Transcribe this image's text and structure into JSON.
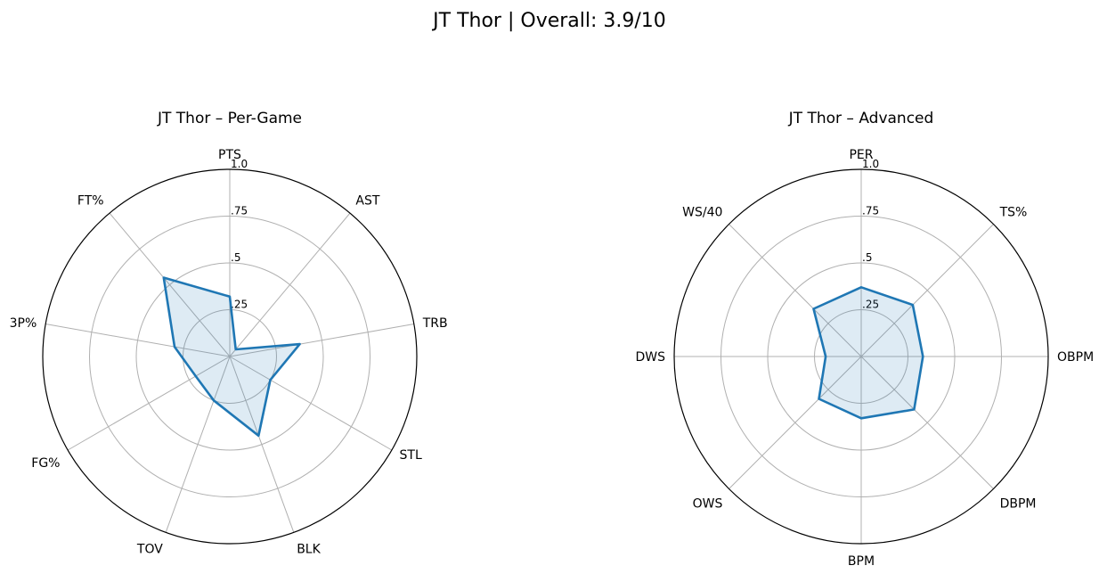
{
  "figure": {
    "title": "JT Thor | Overall: 3.9/10"
  },
  "colors": {
    "series": "#1f77b4",
    "grid": "#b0b0b0",
    "frame": "#000000"
  },
  "chart_data": [
    {
      "type": "radar",
      "title": "JT Thor – Per-Game",
      "categories": [
        "PTS",
        "AST",
        "TRB",
        "STL",
        "BLK",
        "TOV",
        "FG%",
        "3P%",
        "FT%"
      ],
      "values": [
        0.32,
        0.05,
        0.38,
        0.25,
        0.45,
        0.25,
        0.21,
        0.3,
        0.55
      ],
      "rlim": [
        0,
        1
      ],
      "rticks": [
        0.25,
        0.5,
        0.75,
        1.0
      ],
      "rtick_labels": [
        ".25",
        ".5",
        ".75",
        "1.0"
      ],
      "grid": true
    },
    {
      "type": "radar",
      "title": "JT Thor – Advanced",
      "categories": [
        "PER",
        "TS%",
        "OBPM",
        "DBPM",
        "BPM",
        "OWS",
        "DWS",
        "WS/40"
      ],
      "values": [
        0.37,
        0.39,
        0.33,
        0.4,
        0.33,
        0.32,
        0.19,
        0.36
      ],
      "rlim": [
        0,
        1
      ],
      "rticks": [
        0.25,
        0.5,
        0.75,
        1.0
      ],
      "rtick_labels": [
        ".25",
        ".5",
        ".75",
        "1.0"
      ],
      "grid": true
    }
  ]
}
